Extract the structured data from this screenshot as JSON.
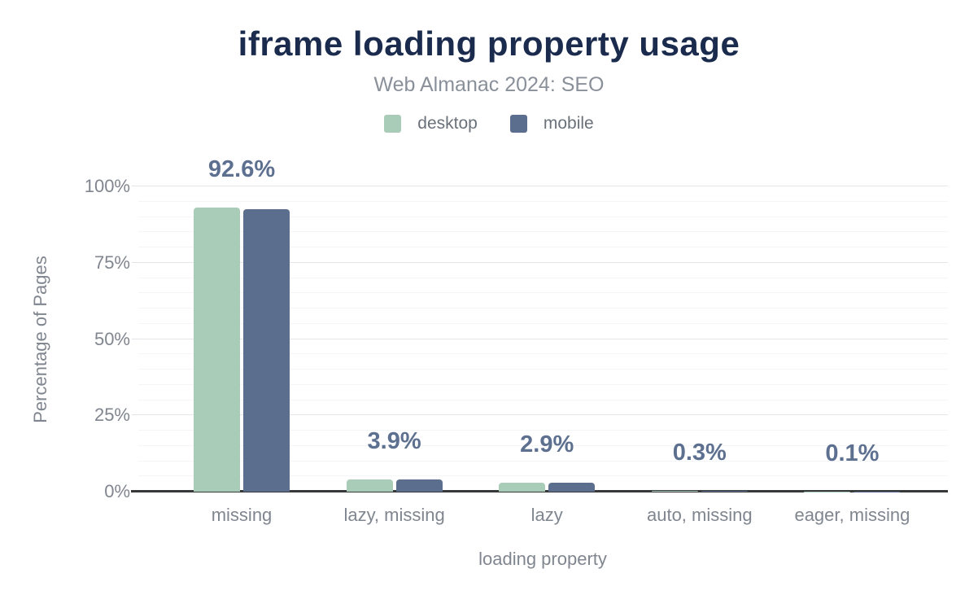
{
  "header": {
    "title": "iframe loading property usage",
    "subtitle": "Web Almanac 2024: SEO"
  },
  "legend": {
    "items": [
      {
        "label": "desktop",
        "color": "#a9ccb8"
      },
      {
        "label": "mobile",
        "color": "#5b6e8d"
      }
    ]
  },
  "colors": {
    "title": "#1a2b4d",
    "subtitle": "#8a9099",
    "axis_text": "#80868f",
    "value_label": "#5d7090",
    "desktop_bar": "#a9ccb8",
    "mobile_bar": "#5b6e8d",
    "major_grid": "#e4e7ea",
    "minor_grid": "#f4f5f7",
    "axis_line": "#37383a"
  },
  "chart_data": {
    "type": "bar",
    "title": "iframe loading property usage",
    "subtitle": "Web Almanac 2024: SEO",
    "categories": [
      "missing",
      "lazy, missing",
      "lazy",
      "auto, missing",
      "eager, missing"
    ],
    "series": [
      {
        "name": "desktop",
        "color": "#a9ccb8",
        "values": [
          93.2,
          3.9,
          2.9,
          0.3,
          0.1
        ]
      },
      {
        "name": "mobile",
        "color": "#5b6e8d",
        "values": [
          92.6,
          3.9,
          2.9,
          0.3,
          0.1
        ]
      }
    ],
    "bar_labels": [
      "92.6%",
      "3.9%",
      "2.9%",
      "0.3%",
      "0.1%"
    ],
    "xlabel": "loading property",
    "ylabel": "Percentage of Pages",
    "yticks": [
      "0%",
      "25%",
      "50%",
      "75%",
      "100%"
    ],
    "ytick_values": [
      0,
      25,
      50,
      75,
      100
    ],
    "minor_grid_step": 5,
    "ylim": [
      0,
      100
    ],
    "grid": true,
    "legend_position": "top"
  }
}
